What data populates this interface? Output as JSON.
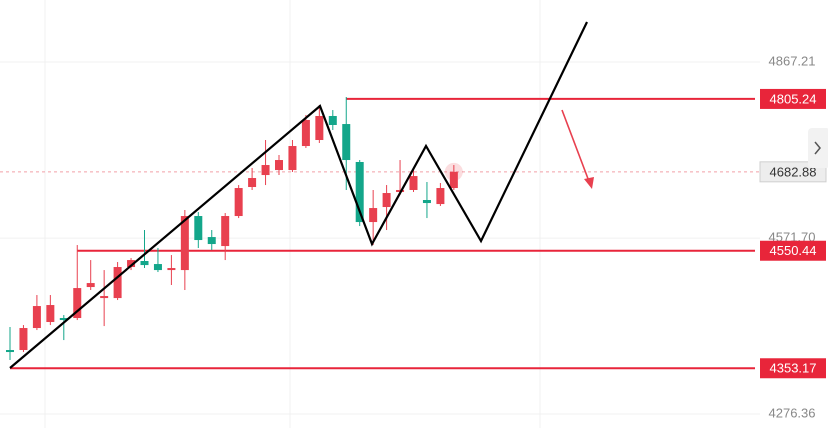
{
  "chart_data": {
    "type": "candlestick",
    "ylim": [
      4252.9,
      4971.3
    ],
    "yticks": [
      4867.21,
      {
        "value": 4571.7,
        "label": "4571.70"
      },
      4276.36
    ],
    "levels": [
      4805.24,
      4550.44,
      4353.17
    ],
    "last_price": 4682.88,
    "up_color": "#e8404f",
    "down_color": "#13a68a",
    "level_color": "#e8253a",
    "open": [
      4383.8,
      4383.8,
      4420.7,
      4430.8,
      4437.5,
      4437.5,
      4489.5,
      4471.0,
      4471.0,
      4523.1,
      4533.2,
      4528.1,
      4518.0,
      4518.0,
      4608.7,
      4573.4,
      4558.3,
      4608.7,
      4657.4,
      4677.5,
      4685.9,
      4685.9,
      4726.2,
      4736.3,
      4776.6,
      4763.1,
      4699.4,
      4598.6,
      4623.8,
      4649.0,
      4652.4,
      4635.6,
      4628.8,
      4655.7
    ],
    "high": [
      4422.4,
      4425.7,
      4476.1,
      4476.1,
      4442.5,
      4560.0,
      4534.8,
      4518.0,
      4531.5,
      4538.2,
      4585.2,
      4555.0,
      4543.2,
      4618.8,
      4615.4,
      4585.2,
      4613.7,
      4660.7,
      4689.3,
      4736.3,
      4711.1,
      4736.3,
      4778.2,
      4795.0,
      4786.6,
      4808.5,
      4702.7,
      4652.4,
      4660.7,
      4702.7,
      4689.3,
      4665.8,
      4664.1,
      4694.3
    ],
    "low": [
      4367.0,
      4380.4,
      4417.3,
      4425.7,
      4400.5,
      4434.1,
      4484.5,
      4424.0,
      4467.7,
      4518.0,
      4521.4,
      4514.7,
      4492.9,
      4484.5,
      4555.0,
      4551.6,
      4534.8,
      4605.3,
      4652.4,
      4660.7,
      4677.5,
      4682.6,
      4722.9,
      4731.3,
      4753.1,
      4652.4,
      4591.9,
      4560.0,
      4585.2,
      4643.9,
      4649.0,
      4605.3,
      4625.5,
      4652.4
    ],
    "close": [
      4380.4,
      4420.7,
      4457.6,
      4459.3,
      4434.1,
      4487.8,
      4496.2,
      4474.4,
      4523.1,
      4534.8,
      4526.4,
      4518.0,
      4521.4,
      4608.7,
      4568.4,
      4561.7,
      4608.7,
      4655.7,
      4672.5,
      4694.3,
      4702.7,
      4726.2,
      4769.9,
      4776.6,
      4761.5,
      4702.7,
      4598.6,
      4622.1,
      4647.3,
      4652.4,
      4675.8,
      4630.5,
      4655.7,
      4682.88
    ]
  }
}
